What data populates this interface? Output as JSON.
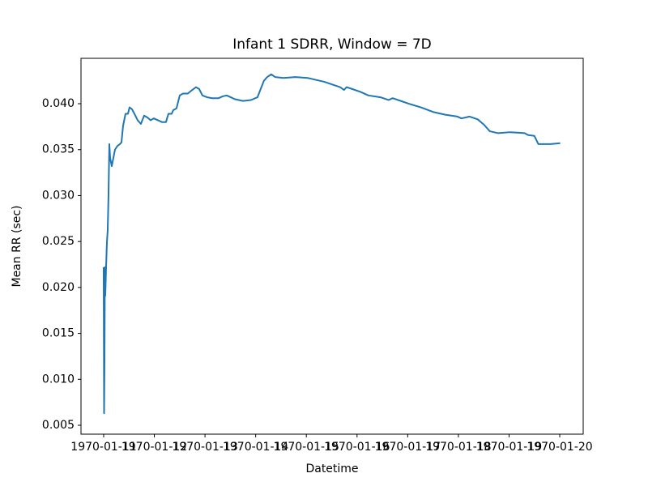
{
  "chart_data": {
    "type": "line",
    "title": "Infant 1 SDRR, Window = 7D",
    "x_label": "Datetime",
    "y_label": "Mean RR (sec)",
    "x": [
      "1970-01-11T00:00",
      "1970-01-11T00:12",
      "1970-01-11T00:23",
      "1970-01-11T00:35",
      "1970-01-11T00:46",
      "1970-01-11T01:09",
      "1970-01-11T01:32",
      "1970-01-11T01:55",
      "1970-01-11T02:18",
      "1970-01-11T02:41",
      "1970-01-11T03:04",
      "1970-01-11T03:50",
      "1970-01-11T04:36",
      "1970-01-11T05:22",
      "1970-01-11T06:31",
      "1970-01-11T07:40",
      "1970-01-11T08:26",
      "1970-01-11T09:12",
      "1970-01-11T10:21",
      "1970-01-11T11:30",
      "1970-01-11T12:16",
      "1970-01-11T13:25",
      "1970-01-11T14:34",
      "1970-01-11T16:06",
      "1970-01-11T17:38",
      "1970-01-11T19:10",
      "1970-01-11T20:42",
      "1970-01-11T22:14",
      "1970-01-11T23:46",
      "1970-01-12T01:41",
      "1970-01-12T03:36",
      "1970-01-12T05:31",
      "1970-01-12T06:40",
      "1970-01-12T08:12",
      "1970-01-12T08:58",
      "1970-01-12T10:30",
      "1970-01-12T12:02",
      "1970-01-12T13:34",
      "1970-01-12T15:52",
      "1970-01-12T17:24",
      "1970-01-12T19:42",
      "1970-01-12T21:14",
      "1970-01-12T22:46",
      "1970-01-13T01:04",
      "1970-01-13T03:22",
      "1970-01-13T06:26",
      "1970-01-13T08:21",
      "1970-01-13T10:16",
      "1970-01-13T12:11",
      "1970-01-13T14:06",
      "1970-01-13T17:56",
      "1970-01-13T21:46",
      "1970-01-14T00:50",
      "1970-01-14T02:22",
      "1970-01-14T03:54",
      "1970-01-14T05:26",
      "1970-01-14T07:21",
      "1970-01-14T09:16",
      "1970-01-14T13:06",
      "1970-01-14T18:52",
      "1970-01-15T00:37",
      "1970-01-15T04:27",
      "1970-01-15T08:17",
      "1970-01-15T12:07",
      "1970-01-15T15:57",
      "1970-01-15T17:52",
      "1970-01-15T19:01",
      "1970-01-15T21:42",
      "1970-01-16T01:32",
      "1970-01-16T05:22",
      "1970-01-16T11:07",
      "1970-01-16T14:58",
      "1970-01-16T16:52",
      "1970-01-16T20:43",
      "1970-01-17T00:32",
      "1970-01-17T06:17",
      "1970-01-17T12:02",
      "1970-01-17T17:47",
      "1970-01-17T23:33",
      "1970-01-18T01:28",
      "1970-01-18T05:18",
      "1970-01-18T09:08",
      "1970-01-18T12:12",
      "1970-01-18T14:53",
      "1970-01-18T18:43",
      "1970-01-19T00:28",
      "1970-01-19T07:22",
      "1970-01-19T08:54",
      "1970-01-19T11:58",
      "1970-01-19T13:53",
      "1970-01-19T19:38",
      "1970-01-20T00:14"
    ],
    "values": [
      0.0222,
      0.0063,
      0.0116,
      0.0222,
      0.0191,
      0.0222,
      0.0249,
      0.0262,
      0.0301,
      0.0356,
      0.0341,
      0.0332,
      0.0341,
      0.035,
      0.0354,
      0.0356,
      0.0358,
      0.0376,
      0.0389,
      0.0389,
      0.0396,
      0.0394,
      0.0389,
      0.0382,
      0.0378,
      0.0387,
      0.0385,
      0.0382,
      0.0384,
      0.0382,
      0.038,
      0.038,
      0.0389,
      0.0389,
      0.0393,
      0.0395,
      0.0409,
      0.0411,
      0.0411,
      0.0414,
      0.0418,
      0.0416,
      0.0409,
      0.0407,
      0.0406,
      0.0406,
      0.0408,
      0.0409,
      0.0407,
      0.0405,
      0.0403,
      0.0404,
      0.0407,
      0.0416,
      0.0425,
      0.0429,
      0.0432,
      0.0429,
      0.0428,
      0.0429,
      0.0428,
      0.0426,
      0.0424,
      0.0421,
      0.0418,
      0.0415,
      0.0418,
      0.0416,
      0.0413,
      0.0409,
      0.0407,
      0.0404,
      0.0406,
      0.0403,
      0.04,
      0.0396,
      0.0391,
      0.0388,
      0.0386,
      0.0384,
      0.0386,
      0.0383,
      0.0377,
      0.037,
      0.0368,
      0.0369,
      0.0368,
      0.0366,
      0.0365,
      0.0356,
      0.0356,
      0.0357
    ],
    "color": "#1f77b4",
    "xlim": [
      "1970-01-10T13:16",
      "1970-01-20T11:07"
    ],
    "xticks": [
      "1970-01-11",
      "1970-01-12",
      "1970-01-13",
      "1970-01-14",
      "1970-01-15",
      "1970-01-16",
      "1970-01-17",
      "1970-01-18",
      "1970-01-19",
      "1970-01-20"
    ],
    "ylim": [
      0.00403,
      0.04494
    ],
    "yticks": [
      0.005,
      {
        "value": 0.01,
        "label": "0.010"
      },
      0.015,
      {
        "value": 0.02,
        "label": "0.020"
      },
      0.025,
      {
        "value": 0.03,
        "label": "0.030"
      },
      0.035,
      {
        "value": 0.04,
        "label": "0.040"
      }
    ],
    "grid": false
  }
}
